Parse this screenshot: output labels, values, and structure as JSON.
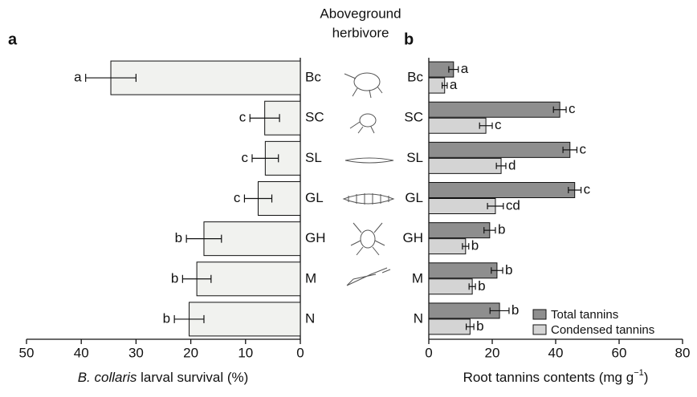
{
  "figure_title": [
    "Aboveground",
    "herbivore"
  ],
  "chart_data": [
    {
      "type": "hbar",
      "panel_label": "a",
      "categories": [
        "Bc",
        "SC",
        "SL",
        "GL",
        "GH",
        "M",
        "N"
      ],
      "values": [
        34.6,
        6.5,
        6.4,
        7.7,
        17.6,
        18.9,
        20.3
      ],
      "errors": [
        4.6,
        2.7,
        2.4,
        2.5,
        3.2,
        2.6,
        2.7
      ],
      "letters": [
        "a",
        "c",
        "c",
        "c",
        "b",
        "b",
        "b"
      ],
      "color": "#f1f2ef",
      "xlabel": [
        "B. collaris",
        " larval survival (%)"
      ],
      "xlim": [
        50,
        0
      ],
      "xticks": [
        50,
        40,
        30,
        20,
        10,
        0
      ]
    },
    {
      "type": "grouped-hbar",
      "panel_label": "b",
      "categories": [
        "Bc",
        "SC",
        "SL",
        "GL",
        "GH",
        "M",
        "N"
      ],
      "series": [
        {
          "name": "Total tannins",
          "color": "#8e8e8e",
          "values": [
            7.8,
            41.3,
            44.5,
            46.0,
            19.2,
            21.5,
            22.3
          ],
          "errors": [
            1.5,
            2.0,
            2.2,
            2.0,
            1.8,
            1.8,
            3.0
          ],
          "letters": [
            "a",
            "c",
            "c",
            "c",
            "b",
            "b",
            "b"
          ]
        },
        {
          "name": "Condensed tannins",
          "color": "#d4d4d4",
          "values": [
            5.0,
            18.0,
            22.8,
            21.0,
            11.6,
            13.7,
            13.0
          ],
          "errors": [
            0.8,
            2.0,
            1.5,
            2.5,
            1.0,
            1.0,
            1.2
          ],
          "letters": [
            "a",
            "c",
            "d",
            "cd",
            "b",
            "b",
            "b"
          ]
        }
      ],
      "xlabel": [
        "Root tannins contents (mg g",
        "−1",
        ")"
      ],
      "xlim": [
        0,
        80
      ],
      "xticks": [
        0,
        20,
        40,
        60,
        80
      ],
      "legend": "lower right"
    }
  ]
}
